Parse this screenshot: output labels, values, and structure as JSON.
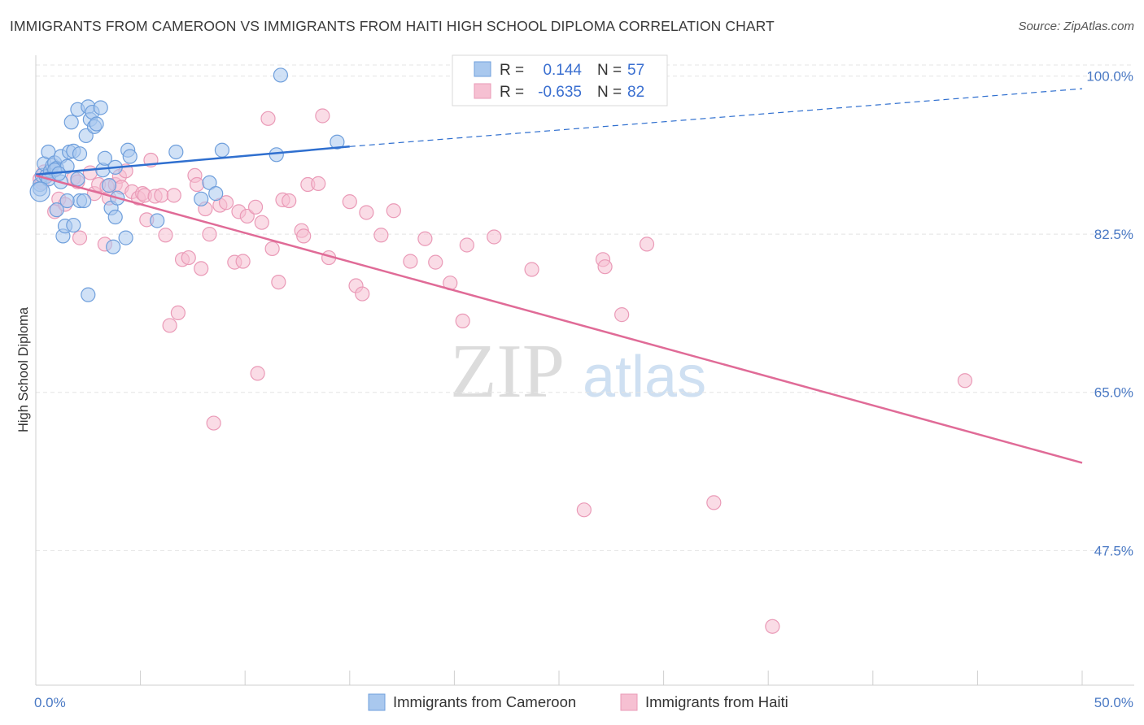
{
  "title": "IMMIGRANTS FROM CAMEROON VS IMMIGRANTS FROM HAITI HIGH SCHOOL DIPLOMA CORRELATION CHART",
  "source": "Source: ZipAtlas.com",
  "watermark": {
    "zip": "ZIP",
    "atlas": "atlas"
  },
  "colors": {
    "cameroon_fill": "#a9c8ee",
    "cameroon_stroke": "#6f9fdc",
    "cameroon_line": "#2f6fcf",
    "haiti_fill": "#f6c0d2",
    "haiti_stroke": "#ea9ab7",
    "haiti_line": "#e06b97",
    "tick_label": "#4a79c4",
    "grid": "#e4e4e4"
  },
  "legend": {
    "rows": [
      {
        "r_label": "R =",
        "r_value": "0.144",
        "n_label": "N =",
        "n_value": "57"
      },
      {
        "r_label": "R =",
        "r_value": "-0.635",
        "n_label": "N =",
        "n_value": "82"
      }
    ]
  },
  "chart_data": {
    "type": "scatter",
    "title": "IMMIGRANTS FROM CAMEROON VS IMMIGRANTS FROM HAITI HIGH SCHOOL DIPLOMA CORRELATION CHART",
    "xlabel": "",
    "ylabel": "High School Diploma",
    "xlim": [
      0,
      50
    ],
    "ylim": [
      32.6,
      102.3
    ],
    "x_ticks_labeled": [
      "0.0%",
      "50.0%"
    ],
    "y_ticks": [
      47.5,
      65.0,
      82.5,
      100.0
    ],
    "y_tick_labels": [
      "47.5%",
      "65.0%",
      "82.5%",
      "100.0%"
    ],
    "grid": true,
    "legend_placement": "bottom",
    "series": [
      {
        "name": "Immigrants from Cameroon",
        "color": "#a9c8ee",
        "stats": {
          "R": 0.144,
          "N": 57
        },
        "trend": {
          "x": [
            0,
            15
          ],
          "y": [
            89.1,
            92.2
          ],
          "extended_to": [
            50,
            98.6
          ]
        },
        "points": [
          {
            "x": 0.2,
            "y": 88.0
          },
          {
            "x": 0.2,
            "y": 87.5
          },
          {
            "x": 0.3,
            "y": 89.0
          },
          {
            "x": 0.4,
            "y": 90.3
          },
          {
            "x": 0.5,
            "y": 88.9
          },
          {
            "x": 0.6,
            "y": 91.6
          },
          {
            "x": 0.7,
            "y": 89.5
          },
          {
            "x": 0.8,
            "y": 90.1
          },
          {
            "x": 0.9,
            "y": 90.4
          },
          {
            "x": 1.0,
            "y": 89.8
          },
          {
            "x": 1.0,
            "y": 85.2
          },
          {
            "x": 1.2,
            "y": 88.3
          },
          {
            "x": 1.2,
            "y": 91.1
          },
          {
            "x": 1.3,
            "y": 82.3
          },
          {
            "x": 1.4,
            "y": 83.4
          },
          {
            "x": 1.5,
            "y": 90.0
          },
          {
            "x": 1.6,
            "y": 91.6
          },
          {
            "x": 1.7,
            "y": 94.9
          },
          {
            "x": 1.8,
            "y": 91.7
          },
          {
            "x": 1.8,
            "y": 83.5
          },
          {
            "x": 2.0,
            "y": 88.6
          },
          {
            "x": 2.1,
            "y": 91.4
          },
          {
            "x": 2.0,
            "y": 96.3
          },
          {
            "x": 2.1,
            "y": 86.2
          },
          {
            "x": 2.3,
            "y": 86.2
          },
          {
            "x": 2.4,
            "y": 93.4
          },
          {
            "x": 2.5,
            "y": 96.6
          },
          {
            "x": 2.6,
            "y": 95.2
          },
          {
            "x": 2.7,
            "y": 96.0
          },
          {
            "x": 2.8,
            "y": 94.4
          },
          {
            "x": 2.9,
            "y": 94.7
          },
          {
            "x": 3.1,
            "y": 96.5
          },
          {
            "x": 3.2,
            "y": 89.6
          },
          {
            "x": 3.3,
            "y": 90.9
          },
          {
            "x": 3.5,
            "y": 87.9
          },
          {
            "x": 3.6,
            "y": 85.4
          },
          {
            "x": 3.7,
            "y": 81.1
          },
          {
            "x": 3.8,
            "y": 84.4
          },
          {
            "x": 3.8,
            "y": 89.9
          },
          {
            "x": 3.9,
            "y": 86.5
          },
          {
            "x": 4.3,
            "y": 82.1
          },
          {
            "x": 4.4,
            "y": 91.8
          },
          {
            "x": 4.5,
            "y": 91.1
          },
          {
            "x": 5.8,
            "y": 84.0
          },
          {
            "x": 6.7,
            "y": 91.6
          },
          {
            "x": 7.9,
            "y": 86.4
          },
          {
            "x": 8.3,
            "y": 88.2
          },
          {
            "x": 8.6,
            "y": 87.0
          },
          {
            "x": 8.9,
            "y": 91.8
          },
          {
            "x": 11.5,
            "y": 91.3
          },
          {
            "x": 11.7,
            "y": 100.1
          },
          {
            "x": 14.4,
            "y": 92.7
          },
          {
            "x": 2.5,
            "y": 75.8
          },
          {
            "x": 1.5,
            "y": 86.2
          },
          {
            "x": 0.9,
            "y": 89.6
          },
          {
            "x": 0.6,
            "y": 88.6
          },
          {
            "x": 1.1,
            "y": 89.2
          }
        ]
      },
      {
        "name": "Immigrants from Haiti",
        "color": "#f6c0d2",
        "stats": {
          "R": -0.635,
          "N": 82
        },
        "trend": {
          "x": [
            0,
            50
          ],
          "y": [
            89.0,
            57.2
          ]
        },
        "points": [
          {
            "x": 0.2,
            "y": 88.6
          },
          {
            "x": 0.3,
            "y": 88.2
          },
          {
            "x": 0.4,
            "y": 89.4
          },
          {
            "x": 0.5,
            "y": 88.9
          },
          {
            "x": 0.9,
            "y": 85.0
          },
          {
            "x": 1.1,
            "y": 86.4
          },
          {
            "x": 1.4,
            "y": 85.8
          },
          {
            "x": 1.8,
            "y": 88.7
          },
          {
            "x": 2.0,
            "y": 88.3
          },
          {
            "x": 2.1,
            "y": 82.1
          },
          {
            "x": 2.6,
            "y": 89.3
          },
          {
            "x": 2.8,
            "y": 87.0
          },
          {
            "x": 3.0,
            "y": 88.0
          },
          {
            "x": 3.3,
            "y": 81.4
          },
          {
            "x": 3.4,
            "y": 87.8
          },
          {
            "x": 3.5,
            "y": 86.5
          },
          {
            "x": 3.8,
            "y": 88.0
          },
          {
            "x": 4.0,
            "y": 88.9
          },
          {
            "x": 4.1,
            "y": 87.7
          },
          {
            "x": 4.3,
            "y": 89.5
          },
          {
            "x": 4.6,
            "y": 87.2
          },
          {
            "x": 4.9,
            "y": 86.5
          },
          {
            "x": 5.1,
            "y": 87.0
          },
          {
            "x": 5.2,
            "y": 86.8
          },
          {
            "x": 5.3,
            "y": 84.1
          },
          {
            "x": 5.5,
            "y": 90.7
          },
          {
            "x": 5.7,
            "y": 86.7
          },
          {
            "x": 6.0,
            "y": 86.8
          },
          {
            "x": 6.2,
            "y": 82.4
          },
          {
            "x": 6.4,
            "y": 72.4
          },
          {
            "x": 6.6,
            "y": 86.8
          },
          {
            "x": 6.8,
            "y": 73.8
          },
          {
            "x": 7.0,
            "y": 79.7
          },
          {
            "x": 7.3,
            "y": 79.9
          },
          {
            "x": 7.6,
            "y": 89.0
          },
          {
            "x": 7.7,
            "y": 88.0
          },
          {
            "x": 7.9,
            "y": 78.7
          },
          {
            "x": 8.1,
            "y": 85.3
          },
          {
            "x": 8.3,
            "y": 82.5
          },
          {
            "x": 8.5,
            "y": 61.6
          },
          {
            "x": 8.8,
            "y": 85.7
          },
          {
            "x": 9.1,
            "y": 86.0
          },
          {
            "x": 9.5,
            "y": 79.4
          },
          {
            "x": 9.7,
            "y": 85.0
          },
          {
            "x": 9.9,
            "y": 79.5
          },
          {
            "x": 10.1,
            "y": 84.5
          },
          {
            "x": 10.5,
            "y": 85.5
          },
          {
            "x": 10.6,
            "y": 67.1
          },
          {
            "x": 10.8,
            "y": 83.8
          },
          {
            "x": 11.1,
            "y": 95.3
          },
          {
            "x": 11.3,
            "y": 80.9
          },
          {
            "x": 11.6,
            "y": 77.2
          },
          {
            "x": 11.8,
            "y": 86.3
          },
          {
            "x": 12.1,
            "y": 86.2
          },
          {
            "x": 12.7,
            "y": 82.9
          },
          {
            "x": 12.8,
            "y": 82.3
          },
          {
            "x": 13.0,
            "y": 88.0
          },
          {
            "x": 13.5,
            "y": 88.1
          },
          {
            "x": 13.7,
            "y": 95.6
          },
          {
            "x": 14.0,
            "y": 79.9
          },
          {
            "x": 15.0,
            "y": 86.1
          },
          {
            "x": 15.3,
            "y": 76.8
          },
          {
            "x": 15.6,
            "y": 75.9
          },
          {
            "x": 15.8,
            "y": 84.9
          },
          {
            "x": 16.5,
            "y": 82.4
          },
          {
            "x": 17.1,
            "y": 85.1
          },
          {
            "x": 17.9,
            "y": 79.5
          },
          {
            "x": 18.6,
            "y": 82.0
          },
          {
            "x": 19.1,
            "y": 79.4
          },
          {
            "x": 19.8,
            "y": 77.1
          },
          {
            "x": 20.4,
            "y": 72.9
          },
          {
            "x": 20.6,
            "y": 81.3
          },
          {
            "x": 21.9,
            "y": 82.2
          },
          {
            "x": 23.7,
            "y": 78.6
          },
          {
            "x": 26.2,
            "y": 52.0
          },
          {
            "x": 27.1,
            "y": 79.7
          },
          {
            "x": 27.2,
            "y": 78.9
          },
          {
            "x": 28.0,
            "y": 73.6
          },
          {
            "x": 29.2,
            "y": 81.4
          },
          {
            "x": 32.4,
            "y": 52.8
          },
          {
            "x": 35.2,
            "y": 39.1
          },
          {
            "x": 44.4,
            "y": 66.3
          }
        ]
      }
    ]
  }
}
